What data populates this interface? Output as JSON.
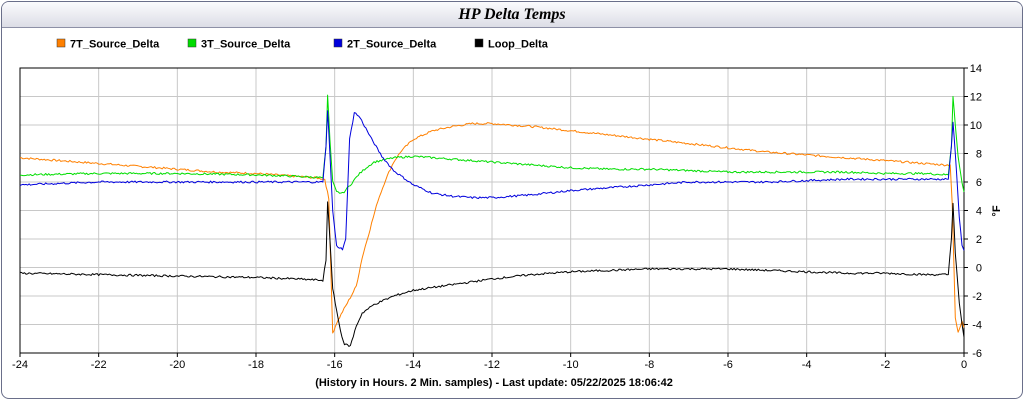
{
  "title": "HP Delta Temps",
  "chart_data": {
    "type": "line",
    "title": "HP Delta Temps",
    "xlabel": "(History in Hours. 2 Min. samples) - Last update: 05/22/2025 18:06:42",
    "ylabel": "°F",
    "xlim": [
      -24,
      0
    ],
    "ylim": [
      -6,
      14
    ],
    "x_ticks": [
      "-24",
      "-22",
      "-20",
      "-18",
      "-16",
      "-14",
      "-12",
      "-10",
      "-8",
      "-6",
      "-4",
      "-2",
      "0"
    ],
    "y_ticks": [
      "14",
      "12",
      "10",
      "8",
      "6",
      "4",
      "2",
      "0",
      "-2",
      "-4",
      "-6"
    ],
    "grid": true,
    "legend_position": "top-left",
    "series": [
      {
        "name": "7T_Source_Delta",
        "color": "#ff8000",
        "points": [
          [
            -24,
            7.7
          ],
          [
            -23,
            7.5
          ],
          [
            -22,
            7.3
          ],
          [
            -21,
            7.1
          ],
          [
            -20,
            6.9
          ],
          [
            -19,
            6.7
          ],
          [
            -18,
            6.6
          ],
          [
            -17,
            6.4
          ],
          [
            -16.5,
            6.3
          ],
          [
            -16.25,
            6.2
          ],
          [
            -16.15,
            4.8
          ],
          [
            -16.05,
            -4.6
          ],
          [
            -15.95,
            -3.9
          ],
          [
            -15.8,
            -3.1
          ],
          [
            -15.6,
            -2.1
          ],
          [
            -15.45,
            -1.3
          ],
          [
            -15.3,
            0.7
          ],
          [
            -15.1,
            2.7
          ],
          [
            -14.9,
            4.7
          ],
          [
            -14.7,
            6.2
          ],
          [
            -14.5,
            7.4
          ],
          [
            -14.3,
            8.2
          ],
          [
            -14.0,
            9.0
          ],
          [
            -13.5,
            9.6
          ],
          [
            -13.0,
            9.9
          ],
          [
            -12.5,
            10.1
          ],
          [
            -12.0,
            10.1
          ],
          [
            -11.0,
            9.9
          ],
          [
            -10.0,
            9.6
          ],
          [
            -9.0,
            9.3
          ],
          [
            -8.0,
            9.0
          ],
          [
            -7.0,
            8.7
          ],
          [
            -6.0,
            8.4
          ],
          [
            -5.0,
            8.1
          ],
          [
            -4.0,
            7.9
          ],
          [
            -3.0,
            7.7
          ],
          [
            -2.0,
            7.5
          ],
          [
            -1.0,
            7.3
          ],
          [
            -0.5,
            7.2
          ],
          [
            -0.35,
            7.2
          ],
          [
            -0.3,
            4.5
          ],
          [
            -0.22,
            -3.5
          ],
          [
            -0.15,
            -4.6
          ],
          [
            -0.05,
            -3.8
          ],
          [
            0,
            -4.2
          ]
        ]
      },
      {
        "name": "3T_Source_Delta",
        "color": "#00dd00",
        "points": [
          [
            -24,
            6.5
          ],
          [
            -22,
            6.6
          ],
          [
            -20,
            6.6
          ],
          [
            -18,
            6.5
          ],
          [
            -17,
            6.4
          ],
          [
            -16.3,
            6.3
          ],
          [
            -16.22,
            8.5
          ],
          [
            -16.18,
            12.1
          ],
          [
            -16.12,
            9.0
          ],
          [
            -16.05,
            6.0
          ],
          [
            -15.95,
            5.3
          ],
          [
            -15.8,
            5.2
          ],
          [
            -15.6,
            5.8
          ],
          [
            -15.4,
            6.5
          ],
          [
            -15.2,
            7.0
          ],
          [
            -15.0,
            7.4
          ],
          [
            -14.5,
            7.7
          ],
          [
            -14.0,
            7.8
          ],
          [
            -13.0,
            7.6
          ],
          [
            -12.0,
            7.4
          ],
          [
            -11.0,
            7.2
          ],
          [
            -10.0,
            7.0
          ],
          [
            -9.0,
            6.9
          ],
          [
            -8.0,
            6.9
          ],
          [
            -7.0,
            6.8
          ],
          [
            -6.0,
            6.7
          ],
          [
            -5.0,
            6.7
          ],
          [
            -4.0,
            6.7
          ],
          [
            -3.0,
            6.7
          ],
          [
            -2.0,
            6.6
          ],
          [
            -1.0,
            6.6
          ],
          [
            -0.4,
            6.5
          ],
          [
            -0.32,
            8.5
          ],
          [
            -0.28,
            12.0
          ],
          [
            -0.22,
            10.0
          ],
          [
            -0.15,
            7.8
          ],
          [
            -0.05,
            6.0
          ],
          [
            0,
            5.3
          ]
        ]
      },
      {
        "name": "2T_Source_Delta",
        "color": "#0000dd",
        "points": [
          [
            -24,
            5.8
          ],
          [
            -22,
            6.0
          ],
          [
            -20,
            6.0
          ],
          [
            -18,
            6.0
          ],
          [
            -17,
            6.0
          ],
          [
            -16.3,
            6.0
          ],
          [
            -16.22,
            8.5
          ],
          [
            -16.18,
            11.0
          ],
          [
            -16.12,
            8.0
          ],
          [
            -16.05,
            4.0
          ],
          [
            -15.95,
            1.5
          ],
          [
            -15.8,
            1.3
          ],
          [
            -15.72,
            2.0
          ],
          [
            -15.62,
            9.0
          ],
          [
            -15.5,
            10.9
          ],
          [
            -15.35,
            10.5
          ],
          [
            -15.1,
            9.2
          ],
          [
            -14.8,
            7.8
          ],
          [
            -14.5,
            6.8
          ],
          [
            -14.0,
            5.8
          ],
          [
            -13.5,
            5.2
          ],
          [
            -13.0,
            5.0
          ],
          [
            -12.5,
            4.9
          ],
          [
            -12.0,
            4.9
          ],
          [
            -11.0,
            5.1
          ],
          [
            -10.0,
            5.4
          ],
          [
            -9.0,
            5.6
          ],
          [
            -8.0,
            5.8
          ],
          [
            -7.0,
            6.0
          ],
          [
            -6.0,
            6.0
          ],
          [
            -5.0,
            6.0
          ],
          [
            -4.0,
            6.1
          ],
          [
            -3.0,
            6.2
          ],
          [
            -2.0,
            6.2
          ],
          [
            -1.0,
            6.2
          ],
          [
            -0.4,
            6.2
          ],
          [
            -0.32,
            8.5
          ],
          [
            -0.28,
            10.2
          ],
          [
            -0.22,
            8.0
          ],
          [
            -0.12,
            3.5
          ],
          [
            -0.05,
            1.6
          ],
          [
            0,
            1.2
          ]
        ]
      },
      {
        "name": "Loop_Delta",
        "color": "#000000",
        "points": [
          [
            -24,
            -0.4
          ],
          [
            -22,
            -0.5
          ],
          [
            -20,
            -0.6
          ],
          [
            -18,
            -0.7
          ],
          [
            -17,
            -0.8
          ],
          [
            -16.3,
            -0.9
          ],
          [
            -16.22,
            0.5
          ],
          [
            -16.18,
            4.6
          ],
          [
            -16.12,
            2.0
          ],
          [
            -16.05,
            -1.5
          ],
          [
            -15.95,
            -3.0
          ],
          [
            -15.85,
            -4.5
          ],
          [
            -15.75,
            -5.4
          ],
          [
            -15.6,
            -5.5
          ],
          [
            -15.45,
            -4.1
          ],
          [
            -15.3,
            -3.2
          ],
          [
            -15.0,
            -2.6
          ],
          [
            -14.5,
            -2.0
          ],
          [
            -14.0,
            -1.6
          ],
          [
            -13.0,
            -1.2
          ],
          [
            -12.0,
            -0.8
          ],
          [
            -11.0,
            -0.5
          ],
          [
            -10.0,
            -0.3
          ],
          [
            -9.0,
            -0.2
          ],
          [
            -8.0,
            -0.1
          ],
          [
            -7.0,
            -0.1
          ],
          [
            -6.0,
            -0.1
          ],
          [
            -5.0,
            -0.2
          ],
          [
            -4.0,
            -0.3
          ],
          [
            -3.0,
            -0.4
          ],
          [
            -2.0,
            -0.4
          ],
          [
            -1.0,
            -0.5
          ],
          [
            -0.4,
            -0.5
          ],
          [
            -0.32,
            2.0
          ],
          [
            -0.28,
            4.5
          ],
          [
            -0.22,
            1.0
          ],
          [
            -0.12,
            -2.5
          ],
          [
            -0.05,
            -4.0
          ],
          [
            0,
            -4.9
          ]
        ]
      }
    ]
  }
}
